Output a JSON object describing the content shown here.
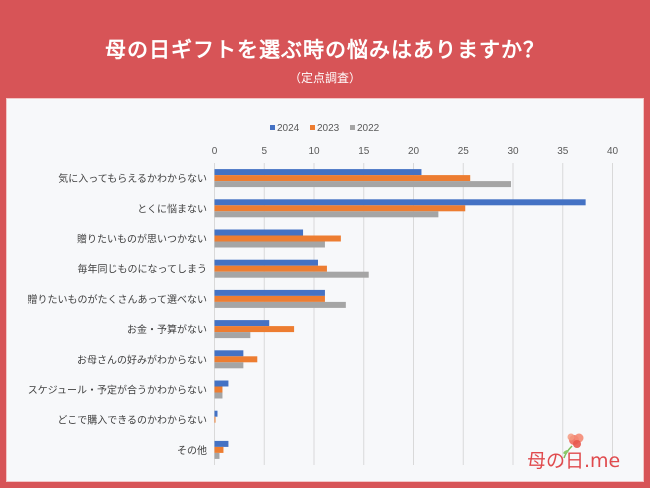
{
  "header": {
    "title": "母の日ギフトを選ぶ時の悩みはありますか？",
    "subtitle": "（定点調査）"
  },
  "logo": {
    "text": "母の日.me",
    "icon": "carnation-icon"
  },
  "colors": {
    "background": "#d75457",
    "panel": "#f7f8fa",
    "grid": "#d9d9d9",
    "series_2024": "#4472c4",
    "series_2023": "#ed7d31",
    "series_2022": "#a5a5a5"
  },
  "chart_data": {
    "type": "bar",
    "orientation": "horizontal",
    "title": "母の日ギフトを選ぶ時の悩みはありますか？",
    "subtitle": "（定点調査）",
    "xlabel": "",
    "ylabel": "",
    "xlim": [
      0,
      40
    ],
    "xticks": [
      0,
      5,
      10,
      15,
      20,
      25,
      30,
      35,
      40
    ],
    "xtick_labels": [
      "0",
      "5",
      "10",
      "15",
      "20",
      "25",
      "30",
      "35",
      "40"
    ],
    "axis_position": "top",
    "grid": true,
    "legend": {
      "placement": "top",
      "entries": [
        "2024",
        "2023",
        "2022"
      ]
    },
    "categories": [
      "気に入ってもらえるかわからない",
      "とくに悩まない",
      "贈りたいものが思いつかない",
      "毎年同じものになってしまう",
      "贈りたいものがたくさんあって選べない",
      "お金・予算がない",
      "お母さんの好みがわからない",
      "スケジュール・予定が合うかわからない",
      "どこで購入できるのかわからない",
      "その他"
    ],
    "series": [
      {
        "name": "2024",
        "color": "#4472c4",
        "values": [
          20.8,
          37.3,
          8.9,
          10.4,
          11.1,
          5.5,
          2.9,
          1.4,
          0.3,
          1.4
        ]
      },
      {
        "name": "2023",
        "color": "#ed7d31",
        "values": [
          25.7,
          25.2,
          12.7,
          11.3,
          11.1,
          8.0,
          4.3,
          0.8,
          0.1,
          0.9
        ]
      },
      {
        "name": "2022",
        "color": "#a5a5a5",
        "values": [
          29.8,
          22.5,
          11.1,
          15.5,
          13.2,
          3.6,
          2.9,
          0.8,
          0.0,
          0.5
        ]
      }
    ]
  }
}
